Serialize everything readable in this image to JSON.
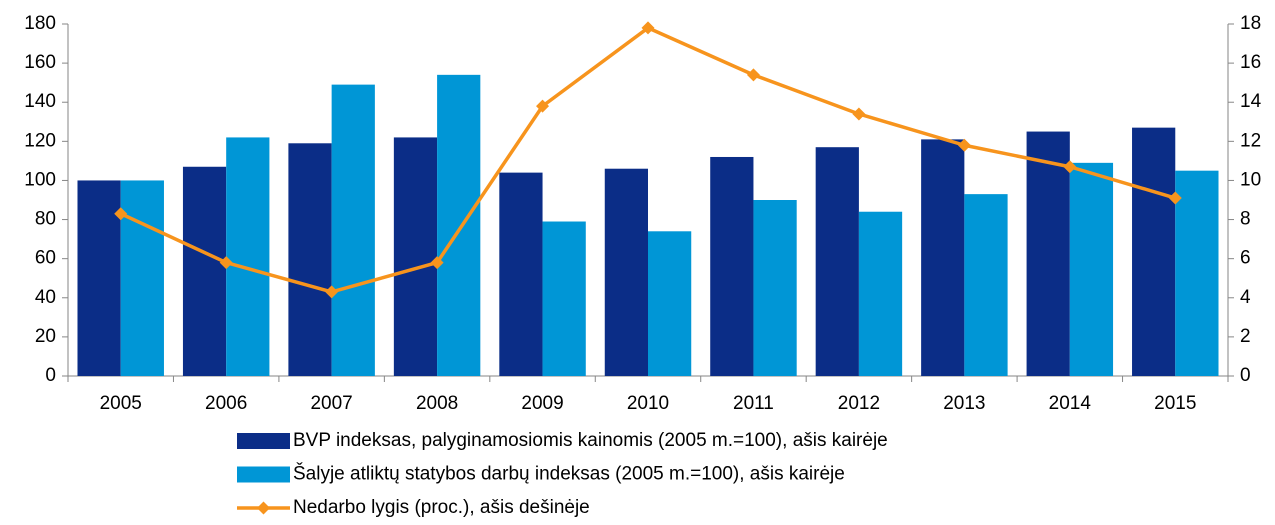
{
  "chart_data": {
    "type": "bar-line",
    "categories": [
      "2005",
      "2006",
      "2007",
      "2008",
      "2009",
      "2010",
      "2011",
      "2012",
      "2013",
      "2014",
      "2015"
    ],
    "series": [
      {
        "name": "BVP indeksas, palyginamosiomis kainomis (2005 m.=100), ašis kairėje",
        "type": "bar",
        "color": "#0b2d87",
        "values": [
          100,
          107,
          119,
          122,
          104,
          106,
          112,
          117,
          121,
          125,
          127
        ]
      },
      {
        "name": "Šalyje atliktų statybos darbų indeksas (2005 m.=100), ašis kairėje",
        "type": "bar",
        "color": "#0096d6",
        "values": [
          100,
          122,
          149,
          154,
          79,
          74,
          90,
          84,
          93,
          109,
          105
        ]
      },
      {
        "name": "Nedarbo lygis (proc.), ašis dešinėje",
        "type": "line",
        "axis": "y2",
        "color": "#f7941d",
        "values": [
          8.3,
          5.8,
          4.3,
          5.8,
          13.8,
          17.8,
          15.4,
          13.4,
          11.8,
          10.7,
          9.1
        ]
      }
    ],
    "ylim": [
      0,
      180
    ],
    "yticks": [
      0,
      20,
      40,
      60,
      80,
      100,
      120,
      140,
      160,
      180
    ],
    "y2lim": [
      0,
      18
    ],
    "y2ticks": [
      0,
      2,
      4,
      6,
      8,
      10,
      12,
      14,
      16,
      18
    ],
    "grid": false,
    "legend": "bottom"
  }
}
